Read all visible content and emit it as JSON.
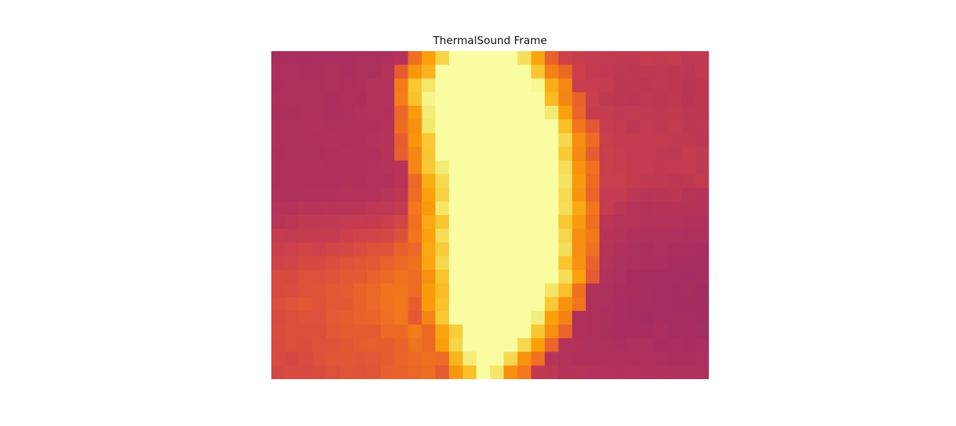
{
  "chart_data": {
    "type": "heatmap",
    "title": "ThermalSound Frame",
    "xlabel": "",
    "ylabel": "",
    "rows": 24,
    "cols": 32,
    "value_range": [
      0,
      1
    ],
    "colormap": "inferno-upper",
    "axes_visible": false,
    "grid": false,
    "hot_band": {
      "center_col": [
        15.5,
        15.5,
        15.5,
        15.7,
        16.0,
        16.3,
        16.5,
        16.6,
        16.8,
        16.9,
        17.0,
        17.0,
        17.0,
        17.0,
        17.0,
        17.0,
        17.0,
        16.8,
        16.6,
        16.4,
        16.3,
        16.0,
        15.8,
        15.6
      ],
      "half_width": [
        2.8,
        3.6,
        4.3,
        4.5,
        4.5,
        4.6,
        4.6,
        4.6,
        4.6,
        4.5,
        4.5,
        4.4,
        4.4,
        4.4,
        4.4,
        4.3,
        4.2,
        4.0,
        3.8,
        3.3,
        2.8,
        2.2,
        1.4,
        0.8
      ]
    },
    "background": {
      "row_base": [
        0.14,
        0.14,
        0.15,
        0.15,
        0.15,
        0.16,
        0.16,
        0.16,
        0.17,
        0.17,
        0.18,
        0.19,
        0.2,
        0.21,
        0.22,
        0.24,
        0.26,
        0.28,
        0.3,
        0.31,
        0.32,
        0.33,
        0.33,
        0.33
      ],
      "left_warm_rows": [
        0.0,
        0.0,
        0.0,
        0.0,
        0.0,
        0.0,
        0.0,
        0.0,
        0.0,
        0.0,
        0.02,
        0.06,
        0.12,
        0.18,
        0.24,
        0.28,
        0.3,
        0.3,
        0.28,
        0.26,
        0.24,
        0.22,
        0.22,
        0.22
      ],
      "right_base": [
        0.3,
        0.28,
        0.27,
        0.27,
        0.28,
        0.29,
        0.3,
        0.3,
        0.3,
        0.29,
        0.27,
        0.24,
        0.21,
        0.18,
        0.15,
        0.13,
        0.11,
        0.1,
        0.1,
        0.11,
        0.13,
        0.16,
        0.19,
        0.22
      ]
    }
  }
}
